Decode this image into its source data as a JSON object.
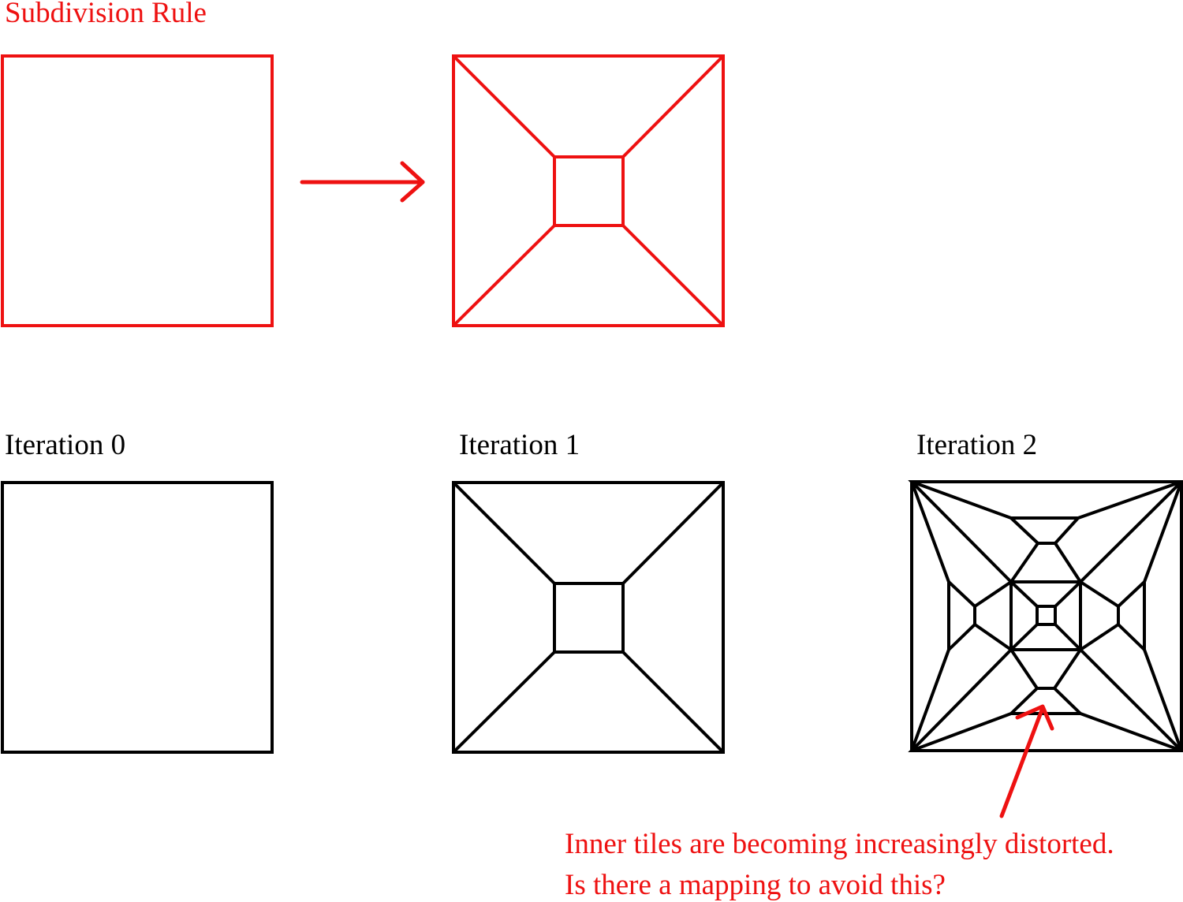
{
  "title": "Subdivision Rule",
  "iterations": [
    {
      "label": "Iteration 0"
    },
    {
      "label": "Iteration 1"
    },
    {
      "label": "Iteration 2"
    }
  ],
  "annotation": {
    "line1": "Inner tiles are becoming increasingly distorted.",
    "line2": "Is there a mapping to avoid this?"
  },
  "colors": {
    "rule": "#ee1111",
    "iteration": "#000000",
    "annotation": "#ee1111"
  }
}
